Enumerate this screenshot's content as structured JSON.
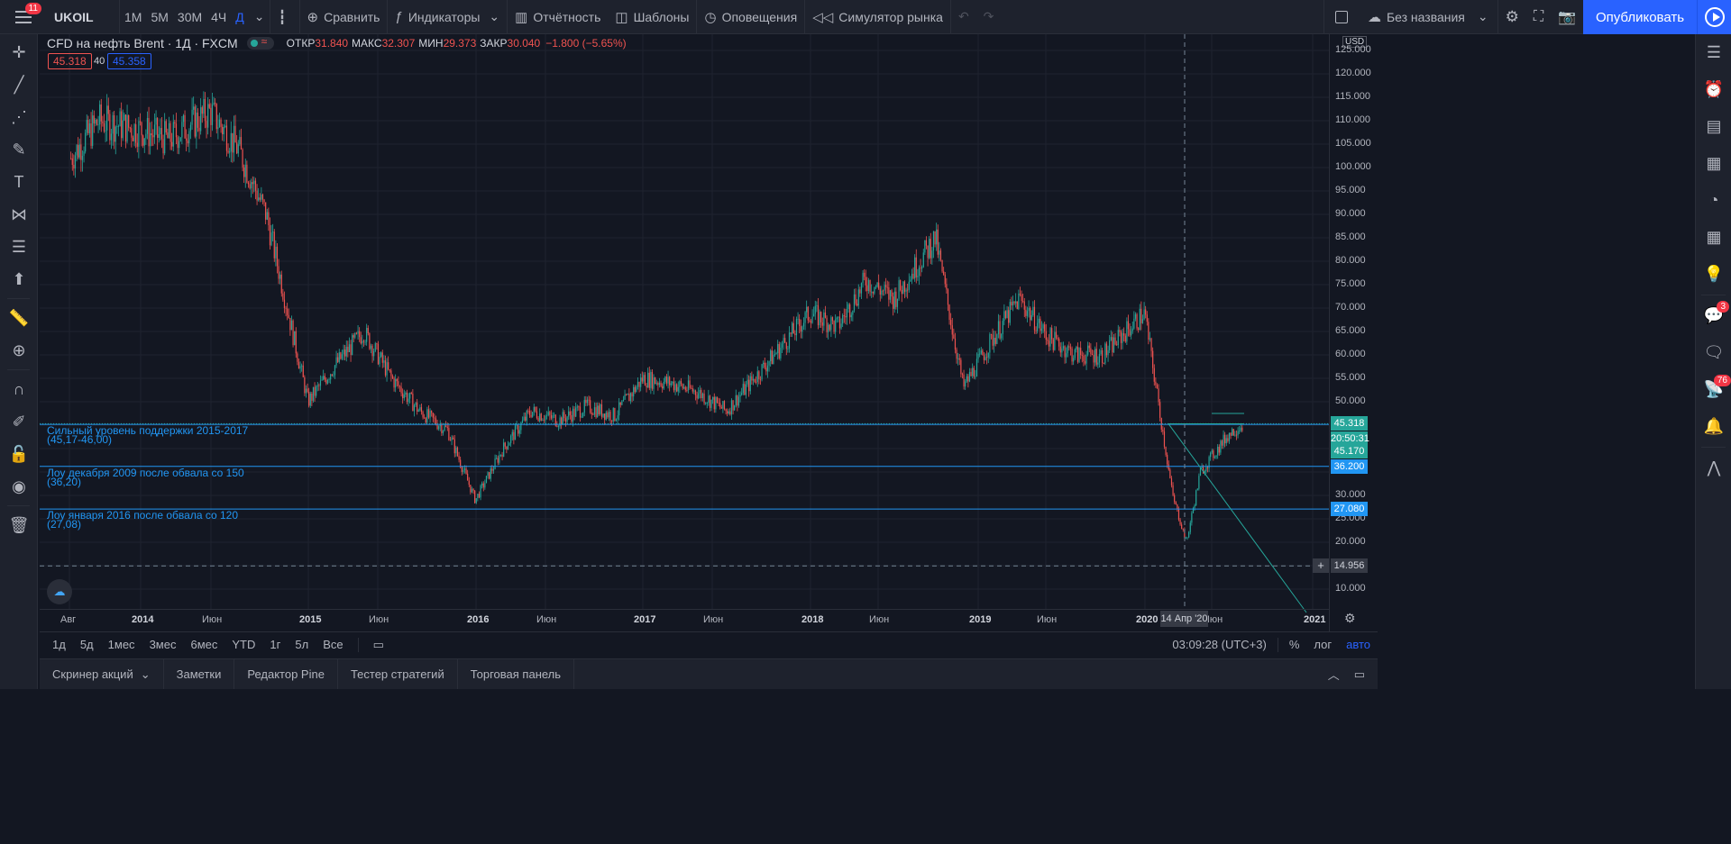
{
  "topbar": {
    "menu_badge": "11",
    "symbol": "UKOIL",
    "intervals": [
      "1M",
      "5M",
      "30M",
      "4Ч",
      "Д"
    ],
    "active_interval": "Д",
    "compare": "Сравнить",
    "indicators": "Индикаторы",
    "financials": "Отчётность",
    "templates": "Шаблоны",
    "alerts": "Оповещения",
    "replay": "Симулятор рынка",
    "layout_name": "Без названия",
    "publish": "Опубликовать"
  },
  "legend": {
    "title": "CFD на нефть Brent · 1Д · FXCM",
    "open_label": "ОТКР",
    "open": "31.840",
    "high_label": "МАКС",
    "high": "32.307",
    "low_label": "МИН",
    "low": "29.373",
    "close_label": "ЗАКР",
    "close": "30.040",
    "change": "−1.800 (−5.65%)",
    "bid": "45.318",
    "spread": "40",
    "ask": "45.358"
  },
  "price_axis": {
    "currency": "USD",
    "labels": [
      "125.000",
      "120.000",
      "115.000",
      "110.000",
      "105.000",
      "100.000",
      "95.000",
      "90.000",
      "85.000",
      "80.000",
      "75.000",
      "70.000",
      "65.000",
      "60.000",
      "55.000",
      "50.000",
      "45.000",
      "40.000",
      "35.000",
      "30.000",
      "25.000",
      "20.000",
      "15.000",
      "10.000"
    ],
    "last_price": "45.318",
    "countdown": "20:50:31",
    "level_45": "45.170",
    "level_36": "36.200",
    "level_27": "27.080",
    "crosshair_price": "14.956"
  },
  "time_axis": {
    "labels": [
      "Авг",
      "2014",
      "Июн",
      "2015",
      "Июн",
      "2016",
      "Июн",
      "2017",
      "Июн",
      "2018",
      "Июн",
      "2019",
      "Июн",
      "2020",
      "Июн",
      "2021"
    ],
    "crosshair_date": "14 Апр '20"
  },
  "annotations": [
    {
      "line1": "Сильный уровень поддержки 2015-2017",
      "line2": "(45,17-46,00)"
    },
    {
      "line1": "Лоу декабря 2009 после обвала со 150",
      "line2": "(36,20)"
    },
    {
      "line1": "Лоу января 2016 после обвала со 120",
      "line2": "(27,08)"
    }
  ],
  "bottom_bar": {
    "ranges": [
      "1д",
      "5д",
      "1мес",
      "3мес",
      "6мес",
      "YTD",
      "1г",
      "5л",
      "Все"
    ],
    "time": "03:09:28 (UTC+3)",
    "percent": "%",
    "log": "лог",
    "auto": "авто"
  },
  "panels": [
    "Скринер акций",
    "Заметки",
    "Редактор Pine",
    "Тестер стратегий",
    "Торговая панель"
  ],
  "right_badges": {
    "chat": "3",
    "ideas": "76"
  },
  "colors": {
    "up": "#26a69a",
    "down": "#ef5350",
    "accent": "#2962ff",
    "level": "#2196f3"
  },
  "chart_data": {
    "type": "candlestick",
    "symbol": "UKOIL",
    "ylim": [
      5,
      127
    ],
    "series": [
      {
        "name": "UKOIL",
        "x": [
          "2013-08",
          "2013-10",
          "2014-01",
          "2014-03",
          "2014-06",
          "2014-08",
          "2014-10",
          "2015-01",
          "2015-03",
          "2015-05",
          "2015-07",
          "2015-09",
          "2015-11",
          "2016-01",
          "2016-03",
          "2016-05",
          "2016-07",
          "2016-09",
          "2016-11",
          "2017-01",
          "2017-03",
          "2017-05",
          "2017-07",
          "2017-09",
          "2017-11",
          "2018-01",
          "2018-03",
          "2018-05",
          "2018-07",
          "2018-10",
          "2018-12",
          "2019-02",
          "2019-04",
          "2019-06",
          "2019-08",
          "2019-10",
          "2019-12",
          "2020-01",
          "2020-03",
          "2020-04",
          "2020-05",
          "2020-07",
          "2020-08"
        ],
        "values": [
          102,
          110,
          108,
          106,
          112,
          104,
          90,
          50,
          58,
          65,
          55,
          48,
          44,
          29,
          40,
          48,
          46,
          49,
          47,
          55,
          54,
          52,
          48,
          55,
          62,
          69,
          66,
          76,
          72,
          85,
          53,
          63,
          72,
          64,
          60,
          60,
          66,
          69,
          30,
          20,
          35,
          43,
          45.3
        ]
      }
    ],
    "horizontal_levels": [
      45.17,
      36.2,
      27.08
    ]
  }
}
